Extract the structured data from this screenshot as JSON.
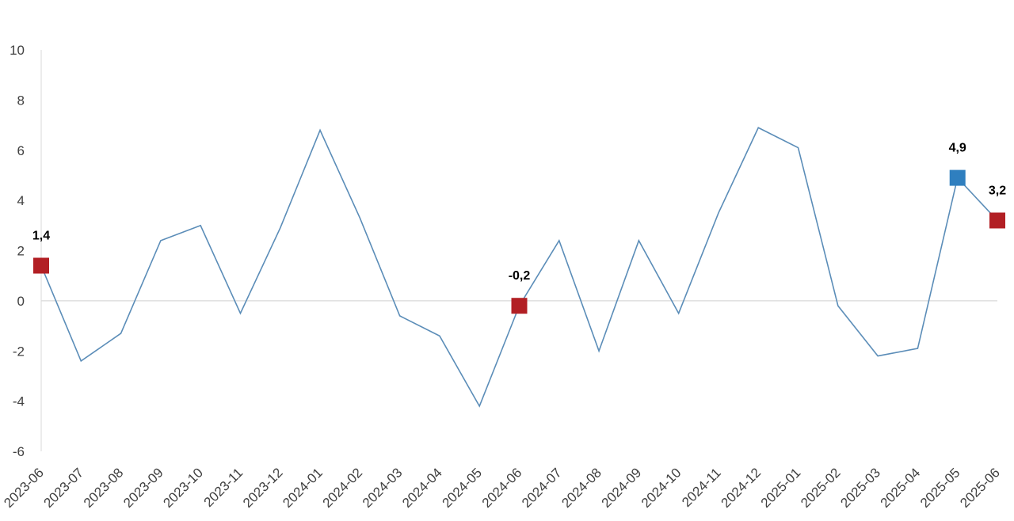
{
  "chart_data": {
    "type": "line",
    "title": "",
    "xlabel": "",
    "ylabel": "",
    "ylim": [
      -6,
      10
    ],
    "yticks": [
      -6,
      -4,
      -2,
      0,
      2,
      4,
      6,
      8,
      10
    ],
    "grid": false,
    "zero_line": true,
    "colors": {
      "line": "#5b8db8",
      "marker_red": "#b21f24",
      "marker_blue": "#2f7fbf",
      "axis": "#d9d9d9",
      "text": "#404040"
    },
    "categories": [
      "2023-06",
      "2023-07",
      "2023-08",
      "2023-09",
      "2023-10",
      "2023-11",
      "2023-12",
      "2024-01",
      "2024-02",
      "2024-03",
      "2024-04",
      "2024-05",
      "2024-06",
      "2024-07",
      "2024-08",
      "2024-09",
      "2024-10",
      "2024-11",
      "2024-12",
      "2025-01",
      "2025-02",
      "2025-03",
      "2025-04",
      "2025-05",
      "2025-06"
    ],
    "series": [
      {
        "values": [
          1.4,
          -2.4,
          -1.3,
          2.4,
          3.0,
          -0.5,
          2.9,
          6.8,
          3.3,
          -0.6,
          -1.4,
          -4.2,
          -0.2,
          2.4,
          -2.0,
          2.4,
          -0.5,
          3.5,
          6.9,
          6.1,
          -0.2,
          -2.2,
          -1.9,
          4.9,
          3.2
        ]
      }
    ],
    "highlights": [
      {
        "category": "2023-06",
        "value": 1.4,
        "label": "1,4",
        "color": "#b21f24"
      },
      {
        "category": "2024-06",
        "value": -0.2,
        "label": "-0,2",
        "color": "#b21f24"
      },
      {
        "category": "2025-05",
        "value": 4.9,
        "label": "4,9",
        "color": "#2f7fbf"
      },
      {
        "category": "2025-06",
        "value": 3.2,
        "label": "3,2",
        "color": "#b21f24"
      }
    ]
  }
}
